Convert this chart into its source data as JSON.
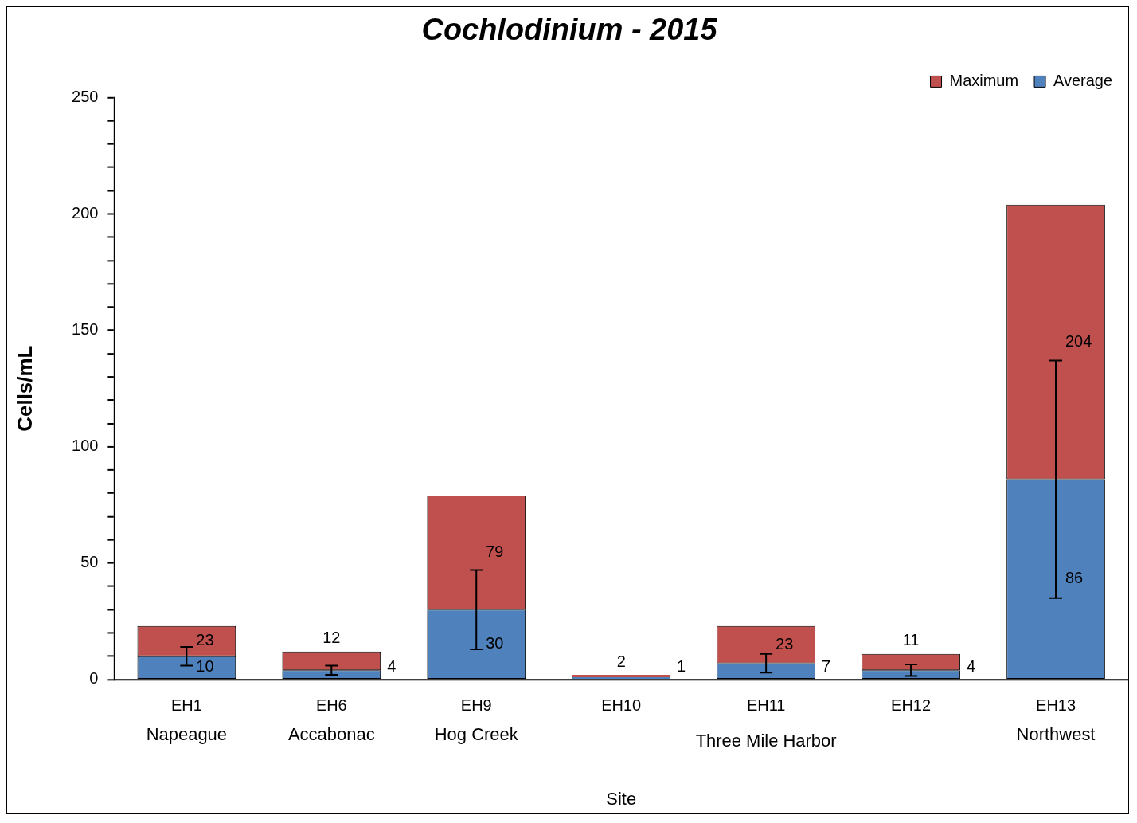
{
  "chart_data": {
    "type": "bar",
    "title": "Cochlodinium - 2015",
    "xlabel": "Site",
    "ylabel": "Cells/mL",
    "categories": [
      "EH1",
      "EH6",
      "EH9",
      "EH10",
      "EH11",
      "EH12",
      "EH13"
    ],
    "stacked": true,
    "series": [
      {
        "name": "Average",
        "color": "#4f81bd",
        "values": [
          10,
          4,
          30,
          1,
          7,
          4,
          86
        ],
        "errors": [
          4,
          2,
          17,
          null,
          4,
          2.5,
          51
        ],
        "value_labels": [
          "10",
          "4",
          "30",
          "1",
          "7",
          "4",
          "86"
        ]
      },
      {
        "name": "Maximum",
        "color": "#c0504d",
        "values": [
          13,
          8,
          49,
          1,
          16,
          7,
          118
        ]
      }
    ],
    "totals": [
      "23",
      "12",
      "79",
      "2",
      "23",
      "11",
      "204"
    ],
    "ylim": [
      0,
      250
    ],
    "yticks": [
      0,
      {
        "value": 10,
        "label": null
      },
      {
        "value": 20,
        "label": null
      },
      {
        "value": 30,
        "label": null
      },
      {
        "value": 40,
        "label": null
      },
      50,
      {
        "value": 60,
        "label": null
      },
      {
        "value": 70,
        "label": null
      },
      {
        "value": 80,
        "label": null
      },
      {
        "value": 90,
        "label": null
      },
      100,
      {
        "value": 110,
        "label": null
      },
      {
        "value": 120,
        "label": null
      },
      {
        "value": 130,
        "label": null
      },
      {
        "value": 140,
        "label": null
      },
      150,
      {
        "value": 160,
        "label": null
      },
      {
        "value": 170,
        "label": null
      },
      {
        "value": 180,
        "label": null
      },
      {
        "value": 190,
        "label": null
      },
      200,
      {
        "value": 210,
        "label": null
      },
      {
        "value": 220,
        "label": null
      },
      {
        "value": 230,
        "label": null
      },
      {
        "value": 240,
        "label": null
      },
      250
    ],
    "annotations": [
      "Napeague",
      "Accabonac",
      "Hog Creek",
      "Three Mile Harbor",
      "Northwest"
    ],
    "grid": false,
    "legend": "top right"
  }
}
